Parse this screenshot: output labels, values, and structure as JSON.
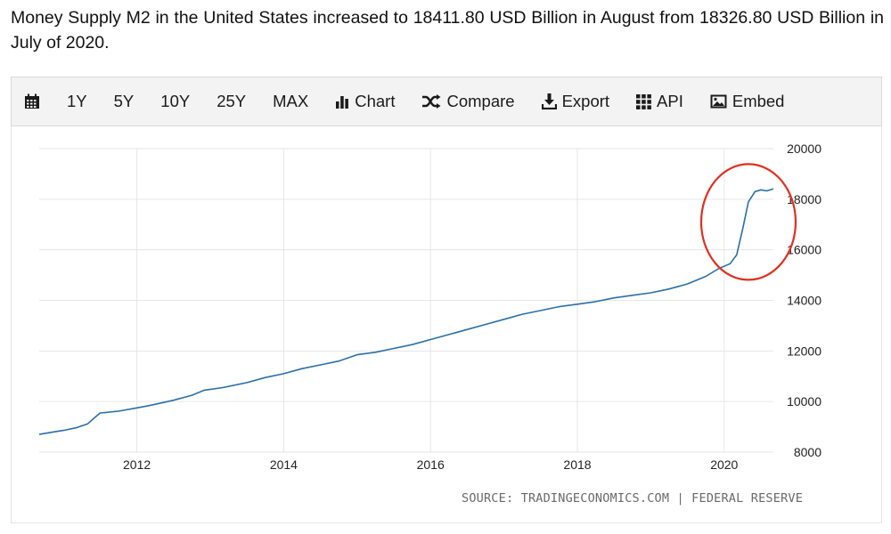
{
  "headline": "Money Supply M2 in the United States increased to 18411.80 USD Billion in August from 18326.80 USD Billion in July of 2020.",
  "toolbar": {
    "ranges": [
      "1Y",
      "5Y",
      "10Y",
      "25Y",
      "MAX"
    ],
    "chart_label": "Chart",
    "compare_label": "Compare",
    "export_label": "Export",
    "api_label": "API",
    "embed_label": "Embed"
  },
  "source": "SOURCE: TRADINGECONOMICS.COM | FEDERAL RESERVE",
  "colors": {
    "line": "#2a6fa8",
    "highlight": "#e0301e",
    "grid": "#e6e6e6"
  },
  "chart_data": {
    "type": "line",
    "title": "",
    "xlabel": "",
    "ylabel": "",
    "ylim": [
      8000,
      20000
    ],
    "xlim": [
      2010.67,
      2020.67
    ],
    "y_ticks": [
      20000,
      18000,
      16000,
      14000,
      12000,
      10000,
      8000
    ],
    "x_ticks": [
      2012,
      2014,
      2016,
      2018,
      2020
    ],
    "grid": true,
    "y_axis_side": "right",
    "annotation": "red ellipse highlighting the 2020 surge",
    "series": [
      {
        "x": [
          2010.67,
          2010.83,
          2011.0,
          2011.17,
          2011.33,
          2011.42,
          2011.5,
          2011.58,
          2011.75,
          2012.0,
          2012.17,
          2012.5,
          2012.75,
          2012.92,
          2013.17,
          2013.5,
          2013.75,
          2014.0,
          2014.25,
          2014.5,
          2014.75,
          2015.0,
          2015.25,
          2015.5,
          2015.75,
          2016.0,
          2016.25,
          2016.5,
          2016.75,
          2017.0,
          2017.25,
          2017.5,
          2017.75,
          2018.0,
          2018.25,
          2018.5,
          2018.75,
          2019.0,
          2019.25,
          2019.5,
          2019.75,
          2019.92,
          2020.08,
          2020.17,
          2020.25,
          2020.33,
          2020.42,
          2020.5,
          2020.58,
          2020.67
        ],
        "y": [
          8700,
          8780,
          8860,
          8960,
          9120,
          9350,
          9550,
          9570,
          9620,
          9750,
          9840,
          10050,
          10250,
          10450,
          10550,
          10750,
          10950,
          11100,
          11300,
          11450,
          11600,
          11850,
          11950,
          12100,
          12250,
          12450,
          12650,
          12850,
          13050,
          13250,
          13450,
          13600,
          13750,
          13850,
          13950,
          14100,
          14200,
          14300,
          14450,
          14650,
          14950,
          15250,
          15450,
          15800,
          16800,
          17900,
          18300,
          18370,
          18327,
          18412
        ]
      }
    ]
  }
}
